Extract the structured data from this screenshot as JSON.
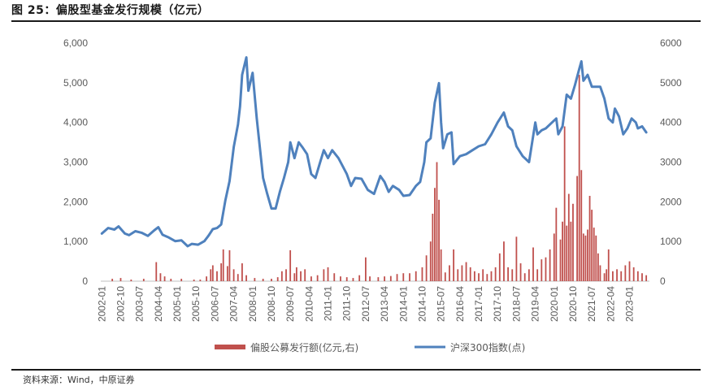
{
  "title": "图 25：偏股型基金发行规模（亿元）",
  "source": "资料来源：Wind，中原证券",
  "colors": {
    "bar": "#c0504d",
    "line": "#4f81bd"
  },
  "chart_data": {
    "type": "bar+line",
    "y_left": {
      "ylim": [
        0,
        6000
      ],
      "ticks": [
        "0",
        "1,000",
        "2,000",
        "3,000",
        "4,000",
        "5,000",
        "6,000"
      ],
      "tick_values": [
        0,
        1000,
        2000,
        3000,
        4000,
        5000,
        6000
      ]
    },
    "y_right": {
      "ylim": [
        0,
        6000
      ],
      "ticks": [
        "0",
        "1000",
        "2000",
        "3000",
        "4000",
        "5000",
        "6000"
      ],
      "tick_values": [
        0,
        1000,
        2000,
        3000,
        4000,
        5000,
        6000
      ]
    },
    "x_tick_labels": [
      "2002-01",
      "2002-10",
      "2003-07",
      "2004-04",
      "2005-01",
      "2005-10",
      "2006-07",
      "2007-04",
      "2008-01",
      "2008-10",
      "2009-07",
      "2010-04",
      "2011-01",
      "2011-10",
      "2012-07",
      "2013-04",
      "2014-01",
      "2014-10",
      "2015-07",
      "2016-04",
      "2017-01",
      "2017-10",
      "2018-07",
      "2019-04",
      "2020-01",
      "2020-10",
      "2021-07",
      "2022-04",
      "2023-01"
    ],
    "x_start": "2002-01",
    "legend": {
      "position": "bottom",
      "entries": [
        "偏股公募发行额(亿元,右)",
        "沪深300指数(点)"
      ]
    },
    "series": [
      {
        "name": "沪深300指数(点)",
        "axis": "left",
        "kind": "line",
        "points": [
          [
            "2002-01",
            1200
          ],
          [
            "2002-04",
            1340
          ],
          [
            "2002-07",
            1300
          ],
          [
            "2002-09",
            1380
          ],
          [
            "2002-12",
            1200
          ],
          [
            "2003-02",
            1160
          ],
          [
            "2003-05",
            1260
          ],
          [
            "2003-08",
            1220
          ],
          [
            "2003-11",
            1140
          ],
          [
            "2004-02",
            1280
          ],
          [
            "2004-04",
            1360
          ],
          [
            "2004-06",
            1170
          ],
          [
            "2004-09",
            1100
          ],
          [
            "2004-12",
            1010
          ],
          [
            "2005-03",
            1030
          ],
          [
            "2005-06",
            880
          ],
          [
            "2005-08",
            940
          ],
          [
            "2005-11",
            920
          ],
          [
            "2006-02",
            1010
          ],
          [
            "2006-04",
            1150
          ],
          [
            "2006-06",
            1310
          ],
          [
            "2006-08",
            1340
          ],
          [
            "2006-10",
            1430
          ],
          [
            "2006-12",
            2040
          ],
          [
            "2007-02",
            2520
          ],
          [
            "2007-04",
            3380
          ],
          [
            "2007-06",
            3950
          ],
          [
            "2007-07",
            4400
          ],
          [
            "2007-08",
            5200
          ],
          [
            "2007-10",
            5640
          ],
          [
            "2007-11",
            4800
          ],
          [
            "2008-01",
            5250
          ],
          [
            "2008-03",
            4100
          ],
          [
            "2008-04",
            3600
          ],
          [
            "2008-06",
            2600
          ],
          [
            "2008-08",
            2200
          ],
          [
            "2008-10",
            1830
          ],
          [
            "2008-12",
            1830
          ],
          [
            "2009-02",
            2250
          ],
          [
            "2009-04",
            2600
          ],
          [
            "2009-06",
            3000
          ],
          [
            "2009-07",
            3500
          ],
          [
            "2009-09",
            3100
          ],
          [
            "2009-11",
            3500
          ],
          [
            "2010-01",
            3360
          ],
          [
            "2010-03",
            3200
          ],
          [
            "2010-05",
            2700
          ],
          [
            "2010-07",
            2600
          ],
          [
            "2010-09",
            2950
          ],
          [
            "2010-11",
            3300
          ],
          [
            "2011-01",
            3100
          ],
          [
            "2011-03",
            3300
          ],
          [
            "2011-06",
            3100
          ],
          [
            "2011-08",
            2900
          ],
          [
            "2011-10",
            2700
          ],
          [
            "2011-12",
            2400
          ],
          [
            "2012-02",
            2600
          ],
          [
            "2012-05",
            2580
          ],
          [
            "2012-08",
            2300
          ],
          [
            "2012-11",
            2200
          ],
          [
            "2013-02",
            2650
          ],
          [
            "2013-04",
            2500
          ],
          [
            "2013-06",
            2250
          ],
          [
            "2013-08",
            2400
          ],
          [
            "2013-11",
            2300
          ],
          [
            "2014-01",
            2150
          ],
          [
            "2014-04",
            2170
          ],
          [
            "2014-07",
            2400
          ],
          [
            "2014-09",
            2500
          ],
          [
            "2014-11",
            3000
          ],
          [
            "2014-12",
            3500
          ],
          [
            "2015-02",
            3600
          ],
          [
            "2015-04",
            4500
          ],
          [
            "2015-06",
            4990
          ],
          [
            "2015-07",
            4000
          ],
          [
            "2015-08",
            3350
          ],
          [
            "2015-10",
            3700
          ],
          [
            "2015-12",
            3750
          ],
          [
            "2016-01",
            2950
          ],
          [
            "2016-04",
            3150
          ],
          [
            "2016-07",
            3200
          ],
          [
            "2016-10",
            3300
          ],
          [
            "2017-01",
            3400
          ],
          [
            "2017-04",
            3450
          ],
          [
            "2017-07",
            3700
          ],
          [
            "2017-10",
            4000
          ],
          [
            "2018-01",
            4250
          ],
          [
            "2018-03",
            3900
          ],
          [
            "2018-05",
            3800
          ],
          [
            "2018-07",
            3400
          ],
          [
            "2018-10",
            3150
          ],
          [
            "2019-01",
            3000
          ],
          [
            "2019-04",
            4000
          ],
          [
            "2019-05",
            3700
          ],
          [
            "2019-07",
            3800
          ],
          [
            "2019-09",
            3850
          ],
          [
            "2019-12",
            4000
          ],
          [
            "2020-02",
            4100
          ],
          [
            "2020-03",
            3700
          ],
          [
            "2020-05",
            3900
          ],
          [
            "2020-07",
            4700
          ],
          [
            "2020-09",
            4600
          ],
          [
            "2020-11",
            4950
          ],
          [
            "2021-01",
            5350
          ],
          [
            "2021-02",
            5540
          ],
          [
            "2021-03",
            5050
          ],
          [
            "2021-05",
            5200
          ],
          [
            "2021-07",
            4900
          ],
          [
            "2021-09",
            4900
          ],
          [
            "2021-11",
            4900
          ],
          [
            "2022-01",
            4600
          ],
          [
            "2022-03",
            4100
          ],
          [
            "2022-05",
            4000
          ],
          [
            "2022-06",
            4350
          ],
          [
            "2022-08",
            4150
          ],
          [
            "2022-10",
            3700
          ],
          [
            "2022-12",
            3850
          ],
          [
            "2023-02",
            4100
          ],
          [
            "2023-04",
            4000
          ],
          [
            "2023-05",
            3850
          ],
          [
            "2023-07",
            3900
          ],
          [
            "2023-09",
            3750
          ]
        ]
      },
      {
        "name": "偏股公募发行额(亿元,右)",
        "axis": "right",
        "kind": "bar",
        "points": [
          [
            "2002-06",
            60
          ],
          [
            "2002-10",
            80
          ],
          [
            "2003-03",
            40
          ],
          [
            "2003-09",
            60
          ],
          [
            "2004-03",
            480
          ],
          [
            "2004-05",
            200
          ],
          [
            "2004-07",
            120
          ],
          [
            "2004-10",
            60
          ],
          [
            "2005-03",
            60
          ],
          [
            "2005-09",
            40
          ],
          [
            "2005-12",
            40
          ],
          [
            "2006-03",
            120
          ],
          [
            "2006-05",
            300
          ],
          [
            "2006-06",
            400
          ],
          [
            "2006-08",
            250
          ],
          [
            "2006-10",
            450
          ],
          [
            "2006-11",
            800
          ],
          [
            "2007-01",
            380
          ],
          [
            "2007-02",
            780
          ],
          [
            "2007-04",
            300
          ],
          [
            "2007-06",
            180
          ],
          [
            "2007-08",
            450
          ],
          [
            "2007-10",
            150
          ],
          [
            "2008-02",
            80
          ],
          [
            "2008-06",
            60
          ],
          [
            "2008-10",
            60
          ],
          [
            "2009-01",
            100
          ],
          [
            "2009-03",
            250
          ],
          [
            "2009-05",
            300
          ],
          [
            "2009-07",
            780
          ],
          [
            "2009-09",
            200
          ],
          [
            "2009-10",
            350
          ],
          [
            "2009-12",
            250
          ],
          [
            "2010-02",
            300
          ],
          [
            "2010-05",
            120
          ],
          [
            "2010-08",
            150
          ],
          [
            "2010-11",
            300
          ],
          [
            "2011-01",
            350
          ],
          [
            "2011-04",
            200
          ],
          [
            "2011-07",
            120
          ],
          [
            "2011-10",
            100
          ],
          [
            "2012-01",
            80
          ],
          [
            "2012-04",
            150
          ],
          [
            "2012-07",
            600
          ],
          [
            "2012-09",
            120
          ],
          [
            "2013-01",
            100
          ],
          [
            "2013-04",
            120
          ],
          [
            "2013-07",
            130
          ],
          [
            "2013-10",
            180
          ],
          [
            "2014-01",
            200
          ],
          [
            "2014-04",
            200
          ],
          [
            "2014-07",
            250
          ],
          [
            "2014-10",
            350
          ],
          [
            "2014-12",
            650
          ],
          [
            "2015-02",
            1000
          ],
          [
            "2015-03",
            1700
          ],
          [
            "2015-04",
            2350
          ],
          [
            "2015-05",
            3000
          ],
          [
            "2015-06",
            2050
          ],
          [
            "2015-07",
            800
          ],
          [
            "2015-09",
            220
          ],
          [
            "2015-11",
            400
          ],
          [
            "2016-01",
            800
          ],
          [
            "2016-03",
            300
          ],
          [
            "2016-05",
            400
          ],
          [
            "2016-07",
            480
          ],
          [
            "2016-09",
            350
          ],
          [
            "2016-11",
            250
          ],
          [
            "2017-01",
            200
          ],
          [
            "2017-03",
            300
          ],
          [
            "2017-05",
            180
          ],
          [
            "2017-07",
            250
          ],
          [
            "2017-09",
            350
          ],
          [
            "2017-11",
            700
          ],
          [
            "2018-01",
            1000
          ],
          [
            "2018-03",
            350
          ],
          [
            "2018-05",
            300
          ],
          [
            "2018-07",
            1120
          ],
          [
            "2018-09",
            450
          ],
          [
            "2018-11",
            200
          ],
          [
            "2019-01",
            300
          ],
          [
            "2019-03",
            850
          ],
          [
            "2019-05",
            300
          ],
          [
            "2019-07",
            550
          ],
          [
            "2019-09",
            600
          ],
          [
            "2019-11",
            800
          ],
          [
            "2020-01",
            1200
          ],
          [
            "2020-02",
            1850
          ],
          [
            "2020-04",
            1050
          ],
          [
            "2020-05",
            1500
          ],
          [
            "2020-06",
            3900
          ],
          [
            "2020-07",
            1400
          ],
          [
            "2020-08",
            2200
          ],
          [
            "2020-09",
            1500
          ],
          [
            "2020-10",
            1950
          ],
          [
            "2020-12",
            2650
          ],
          [
            "2021-01",
            5200
          ],
          [
            "2021-02",
            2800
          ],
          [
            "2021-03",
            1200
          ],
          [
            "2021-04",
            1150
          ],
          [
            "2021-05",
            1300
          ],
          [
            "2021-06",
            2150
          ],
          [
            "2021-07",
            1800
          ],
          [
            "2021-08",
            1350
          ],
          [
            "2021-09",
            1150
          ],
          [
            "2021-10",
            700
          ],
          [
            "2021-11",
            400
          ],
          [
            "2022-01",
            200
          ],
          [
            "2022-02",
            300
          ],
          [
            "2022-03",
            800
          ],
          [
            "2022-05",
            250
          ],
          [
            "2022-07",
            300
          ],
          [
            "2022-09",
            250
          ],
          [
            "2022-11",
            400
          ],
          [
            "2023-01",
            500
          ],
          [
            "2023-03",
            350
          ],
          [
            "2023-05",
            250
          ],
          [
            "2023-07",
            200
          ],
          [
            "2023-09",
            150
          ]
        ]
      }
    ]
  }
}
